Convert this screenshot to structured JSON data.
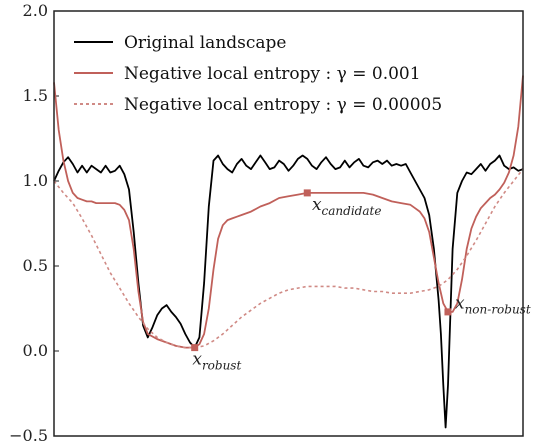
{
  "chart_data": {
    "type": "line",
    "title": "",
    "xlabel": "",
    "ylabel": "",
    "xlim": [
      0,
      1
    ],
    "ylim": [
      -0.5,
      2.0
    ],
    "yticks": [
      -0.5,
      0.0,
      0.5,
      1.0,
      1.5,
      2.0
    ],
    "ytick_labels": [
      "−0.5",
      "0.0",
      "0.5",
      "1.0",
      "1.5",
      "2.0"
    ],
    "grid": false,
    "legend_position": "top-left",
    "series": [
      {
        "name": "Original landscape",
        "color": "#000000",
        "style": "solid",
        "x": [
          0.0,
          0.01,
          0.02,
          0.03,
          0.04,
          0.05,
          0.06,
          0.07,
          0.08,
          0.09,
          0.1,
          0.11,
          0.12,
          0.13,
          0.14,
          0.15,
          0.16,
          0.17,
          0.18,
          0.19,
          0.2,
          0.21,
          0.22,
          0.23,
          0.24,
          0.25,
          0.26,
          0.27,
          0.28,
          0.29,
          0.3,
          0.31,
          0.32,
          0.33,
          0.34,
          0.35,
          0.36,
          0.37,
          0.38,
          0.39,
          0.4,
          0.41,
          0.42,
          0.43,
          0.44,
          0.45,
          0.46,
          0.47,
          0.48,
          0.49,
          0.5,
          0.51,
          0.52,
          0.53,
          0.54,
          0.55,
          0.56,
          0.57,
          0.58,
          0.59,
          0.6,
          0.61,
          0.62,
          0.63,
          0.64,
          0.65,
          0.66,
          0.67,
          0.68,
          0.69,
          0.7,
          0.71,
          0.72,
          0.73,
          0.74,
          0.75,
          0.76,
          0.77,
          0.78,
          0.79,
          0.8,
          0.81,
          0.82,
          0.825,
          0.83,
          0.835,
          0.84,
          0.845,
          0.85,
          0.86,
          0.87,
          0.88,
          0.89,
          0.9,
          0.91,
          0.92,
          0.93,
          0.94,
          0.95,
          0.96,
          0.97,
          0.98,
          0.99,
          1.0
        ],
        "y": [
          1.0,
          1.06,
          1.11,
          1.14,
          1.1,
          1.05,
          1.09,
          1.05,
          1.09,
          1.07,
          1.05,
          1.09,
          1.05,
          1.06,
          1.09,
          1.04,
          0.95,
          0.7,
          0.4,
          0.15,
          0.08,
          0.14,
          0.21,
          0.25,
          0.27,
          0.23,
          0.2,
          0.16,
          0.1,
          0.05,
          0.02,
          0.08,
          0.4,
          0.85,
          1.12,
          1.15,
          1.1,
          1.07,
          1.05,
          1.1,
          1.13,
          1.09,
          1.07,
          1.11,
          1.15,
          1.11,
          1.07,
          1.08,
          1.12,
          1.1,
          1.06,
          1.09,
          1.13,
          1.15,
          1.13,
          1.09,
          1.07,
          1.11,
          1.14,
          1.1,
          1.07,
          1.08,
          1.12,
          1.08,
          1.11,
          1.13,
          1.09,
          1.08,
          1.11,
          1.12,
          1.1,
          1.12,
          1.09,
          1.1,
          1.09,
          1.1,
          1.05,
          1.0,
          0.95,
          0.9,
          0.8,
          0.6,
          0.3,
          0.1,
          -0.2,
          -0.45,
          -0.2,
          0.2,
          0.6,
          0.93,
          1.0,
          1.05,
          1.04,
          1.07,
          1.1,
          1.06,
          1.1,
          1.12,
          1.15,
          1.09,
          1.07,
          1.08,
          1.06,
          1.07
        ]
      },
      {
        "name": "Negative local entropy :  γ = 0.001",
        "color": "#c0605a",
        "style": "solid",
        "x": [
          0.0,
          0.01,
          0.02,
          0.03,
          0.04,
          0.05,
          0.06,
          0.07,
          0.08,
          0.09,
          0.1,
          0.11,
          0.12,
          0.13,
          0.14,
          0.15,
          0.16,
          0.17,
          0.18,
          0.19,
          0.2,
          0.22,
          0.24,
          0.26,
          0.28,
          0.3,
          0.31,
          0.32,
          0.33,
          0.34,
          0.35,
          0.36,
          0.37,
          0.38,
          0.39,
          0.4,
          0.42,
          0.44,
          0.46,
          0.48,
          0.5,
          0.52,
          0.54,
          0.56,
          0.58,
          0.6,
          0.62,
          0.64,
          0.66,
          0.68,
          0.7,
          0.72,
          0.74,
          0.76,
          0.77,
          0.78,
          0.79,
          0.8,
          0.81,
          0.82,
          0.83,
          0.84,
          0.85,
          0.86,
          0.87,
          0.88,
          0.89,
          0.9,
          0.91,
          0.92,
          0.93,
          0.94,
          0.95,
          0.96,
          0.97,
          0.98,
          0.99,
          1.0
        ],
        "y": [
          1.58,
          1.3,
          1.12,
          1.0,
          0.93,
          0.9,
          0.89,
          0.88,
          0.88,
          0.87,
          0.87,
          0.87,
          0.87,
          0.87,
          0.86,
          0.83,
          0.77,
          0.6,
          0.35,
          0.17,
          0.1,
          0.07,
          0.05,
          0.03,
          0.02,
          0.02,
          0.04,
          0.1,
          0.25,
          0.48,
          0.66,
          0.74,
          0.77,
          0.78,
          0.79,
          0.8,
          0.82,
          0.85,
          0.87,
          0.9,
          0.91,
          0.92,
          0.93,
          0.93,
          0.93,
          0.93,
          0.93,
          0.93,
          0.93,
          0.92,
          0.9,
          0.88,
          0.87,
          0.86,
          0.84,
          0.82,
          0.78,
          0.7,
          0.55,
          0.4,
          0.28,
          0.23,
          0.23,
          0.28,
          0.42,
          0.6,
          0.72,
          0.79,
          0.84,
          0.87,
          0.9,
          0.92,
          0.95,
          0.99,
          1.05,
          1.15,
          1.32,
          1.62
        ]
      },
      {
        "name": "Negative local entropy :  γ = 0.00005",
        "color": "#d08a85",
        "style": "dotted",
        "x": [
          0.0,
          0.02,
          0.04,
          0.06,
          0.08,
          0.1,
          0.12,
          0.14,
          0.16,
          0.18,
          0.2,
          0.22,
          0.24,
          0.26,
          0.28,
          0.3,
          0.32,
          0.34,
          0.36,
          0.38,
          0.4,
          0.42,
          0.44,
          0.46,
          0.48,
          0.5,
          0.52,
          0.54,
          0.56,
          0.58,
          0.6,
          0.62,
          0.64,
          0.66,
          0.68,
          0.7,
          0.72,
          0.74,
          0.76,
          0.78,
          0.8,
          0.82,
          0.84,
          0.86,
          0.88,
          0.9,
          0.92,
          0.94,
          0.96,
          0.98,
          1.0
        ],
        "y": [
          1.0,
          0.93,
          0.87,
          0.78,
          0.68,
          0.57,
          0.46,
          0.37,
          0.28,
          0.2,
          0.13,
          0.08,
          0.05,
          0.03,
          0.02,
          0.02,
          0.03,
          0.06,
          0.1,
          0.15,
          0.2,
          0.24,
          0.28,
          0.31,
          0.34,
          0.36,
          0.37,
          0.38,
          0.38,
          0.38,
          0.38,
          0.37,
          0.37,
          0.36,
          0.35,
          0.35,
          0.34,
          0.34,
          0.34,
          0.35,
          0.36,
          0.38,
          0.42,
          0.48,
          0.56,
          0.65,
          0.75,
          0.85,
          0.93,
          1.0,
          1.07
        ]
      }
    ],
    "markers": [
      {
        "x": 0.3,
        "y": 0.02,
        "color": "#c0605a"
      },
      {
        "x": 0.54,
        "y": 0.93,
        "color": "#c0605a"
      },
      {
        "x": 0.84,
        "y": 0.23,
        "color": "#c0605a"
      }
    ],
    "annotations": [
      {
        "base": "x",
        "sub": "robust",
        "x": 0.295,
        "y": -0.08
      },
      {
        "base": "x",
        "sub": "candidate",
        "x": 0.55,
        "y": 0.83
      },
      {
        "base": "x",
        "sub": "non-robust",
        "x": 0.855,
        "y": 0.25
      }
    ]
  }
}
